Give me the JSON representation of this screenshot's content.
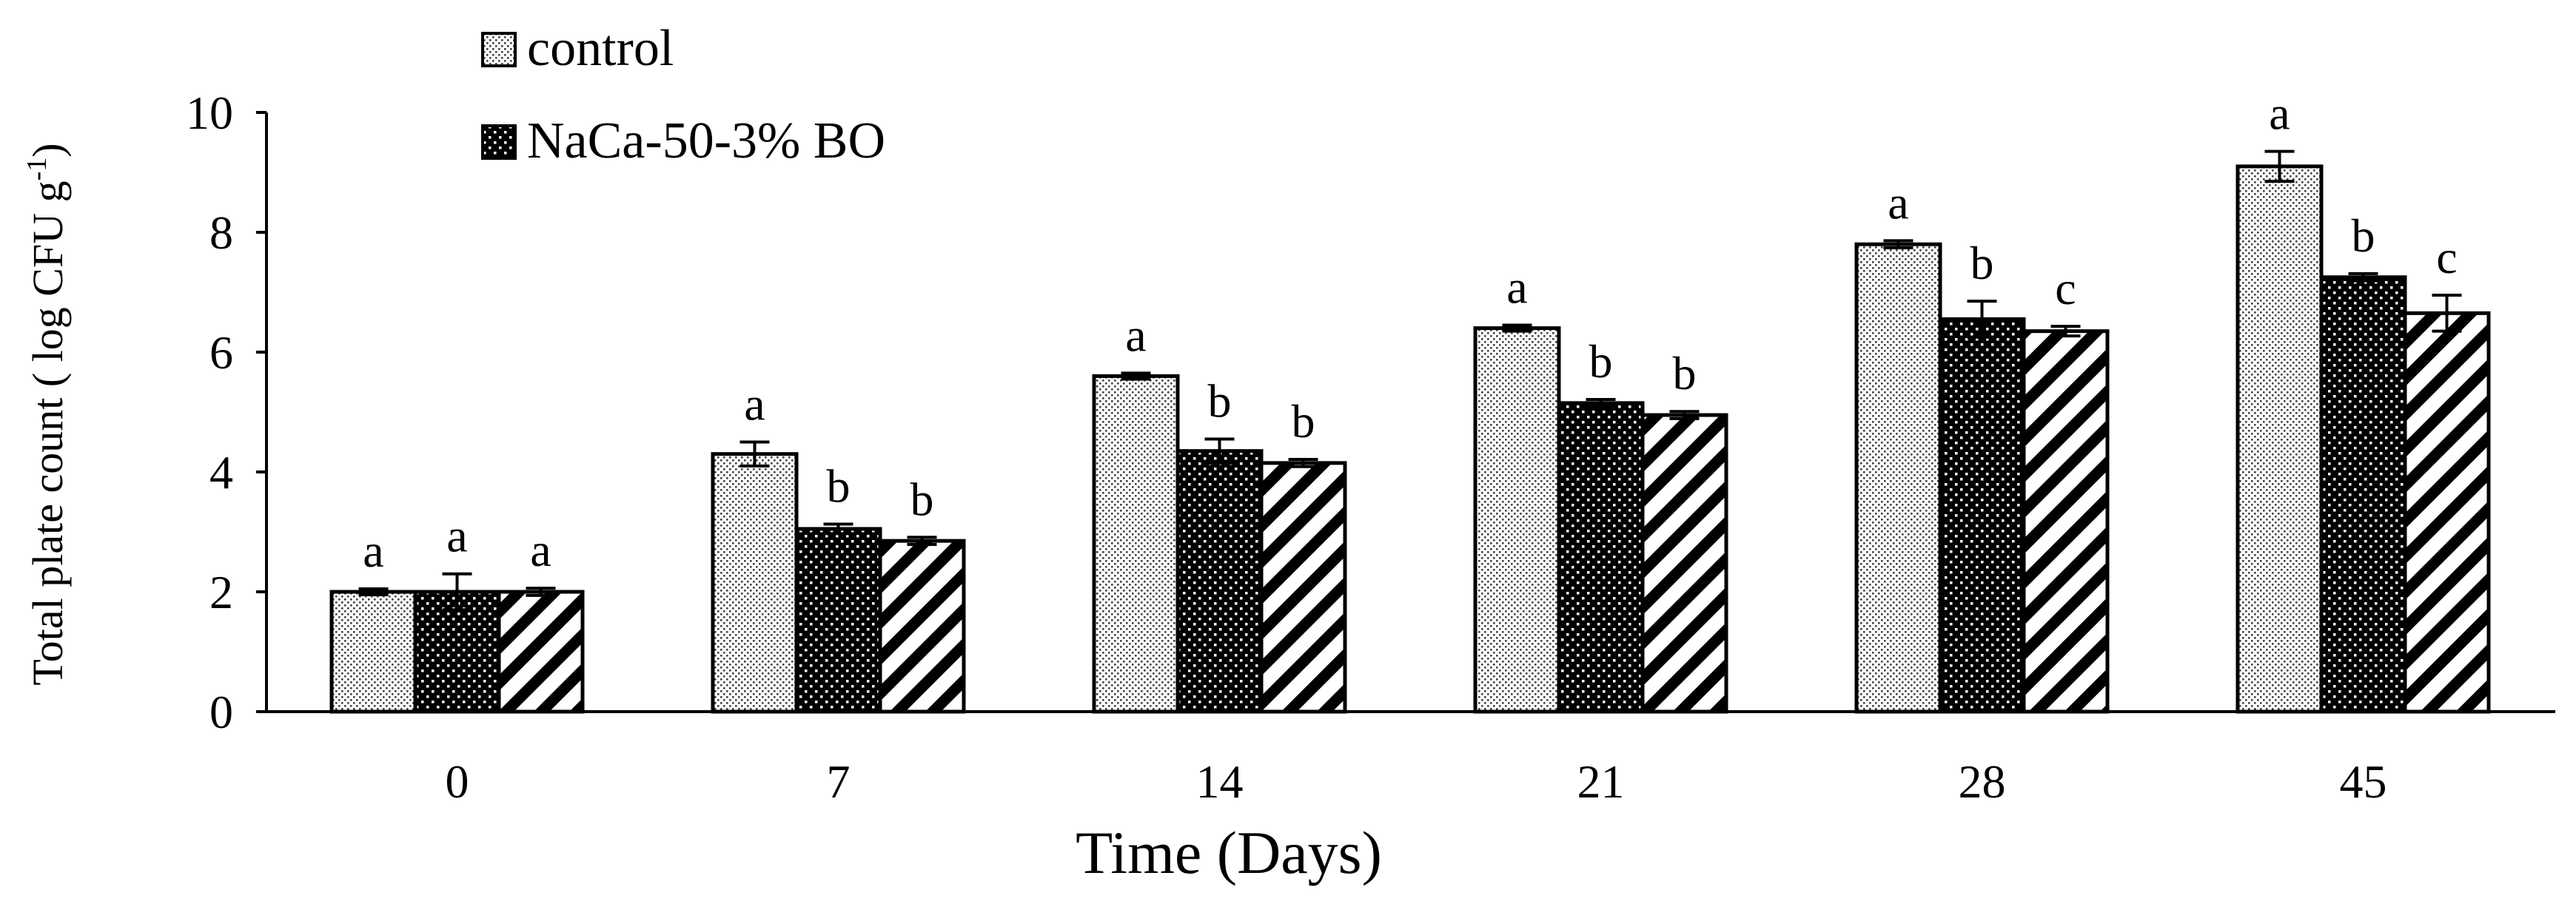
{
  "chart_data": {
    "type": "bar",
    "title": "",
    "xlabel": "Time (Days)",
    "ylabel": "Total plate count ( log CFU g",
    "ylabel_sup": "-1",
    "ylabel_close": ")",
    "categories": [
      "0",
      "7",
      "14",
      "21",
      "28",
      "45"
    ],
    "ylim": [
      0,
      10
    ],
    "yticks": [
      "0",
      "2",
      "4",
      "6",
      "8",
      "10"
    ],
    "grid": false,
    "legend_position": "top-left",
    "series": [
      {
        "name": "control",
        "pattern": "dots-fine",
        "values": [
          2.0,
          4.3,
          5.6,
          6.4,
          7.8,
          9.1
        ],
        "errors": [
          0.05,
          0.2,
          0.05,
          0.05,
          0.06,
          0.25
        ],
        "letters": [
          "a",
          "a",
          "a",
          "a",
          "a",
          "a"
        ]
      },
      {
        "name": "NaCa-50-3% BO",
        "pattern": "dots-dark",
        "values": [
          2.0,
          3.05,
          4.35,
          5.15,
          6.55,
          7.25
        ],
        "errors": [
          0.3,
          0.08,
          0.2,
          0.06,
          0.3,
          0.06
        ],
        "letters": [
          "a",
          "b",
          "b",
          "b",
          "b",
          "b"
        ]
      },
      {
        "name": "",
        "pattern": "diagonal-stripes",
        "values": [
          2.0,
          2.85,
          4.15,
          4.95,
          6.35,
          6.65
        ],
        "errors": [
          0.06,
          0.06,
          0.06,
          0.06,
          0.08,
          0.3
        ],
        "letters": [
          "a",
          "b",
          "b",
          "b",
          "c",
          "c"
        ]
      }
    ]
  }
}
